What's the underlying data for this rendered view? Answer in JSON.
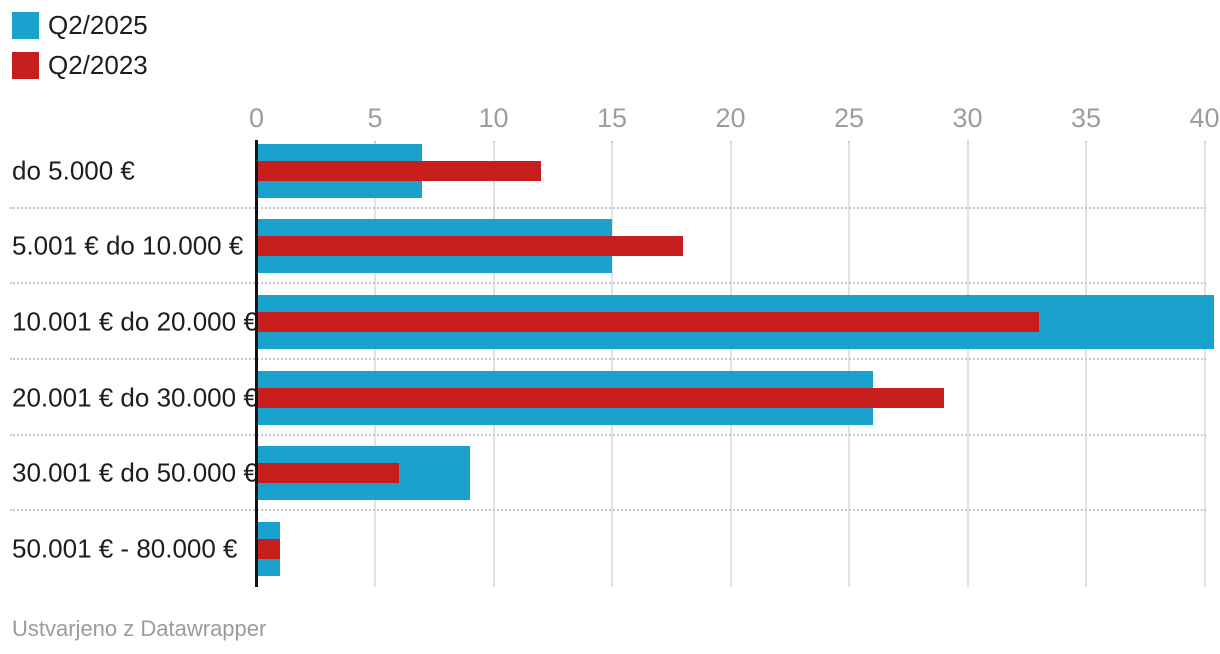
{
  "legend": {
    "items": [
      {
        "label": "Q2/2025",
        "color": "#1aa2cd"
      },
      {
        "label": "Q2/2023",
        "color": "#c71e1d"
      }
    ]
  },
  "footer": {
    "attribution": "Ustvarjeno z Datawrapper"
  },
  "chart_data": {
    "type": "bar",
    "orientation": "horizontal",
    "title": "",
    "xlabel": "",
    "ylabel": "",
    "xlim": [
      0,
      40
    ],
    "x_ticks": [
      0,
      5,
      10,
      15,
      20,
      25,
      30,
      35,
      40
    ],
    "grid": "vertical solid gridlines at each tick; dotted horizontal separators between category rows; solid black zero baseline",
    "legend_position": "top-left",
    "categories": [
      "do 5.000 €",
      "5.001 € do 10.000 €",
      "10.001 € do 20.000 €",
      "20.001 € do 30.000 €",
      "30.001 € do 50.000 €",
      "50.001 € - 80.000 €"
    ],
    "series": [
      {
        "name": "Q2/2025",
        "color": "#1aa2cd",
        "values": [
          7,
          15,
          40.4,
          26,
          9,
          1
        ]
      },
      {
        "name": "Q2/2023",
        "color": "#c71e1d",
        "values": [
          12,
          18,
          33,
          29,
          6,
          1
        ]
      }
    ]
  }
}
